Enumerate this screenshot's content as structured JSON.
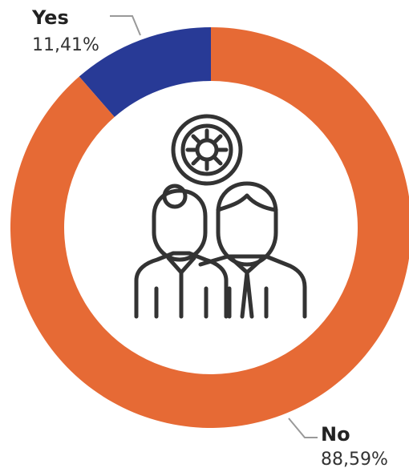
{
  "chart_data": {
    "type": "pie",
    "donut": true,
    "categories": [
      "Yes",
      "No"
    ],
    "values": [
      11.41,
      88.59
    ],
    "value_labels": [
      "11,41%",
      "88,59%"
    ],
    "colors": [
      "#283a96",
      "#e66a35"
    ]
  }
}
